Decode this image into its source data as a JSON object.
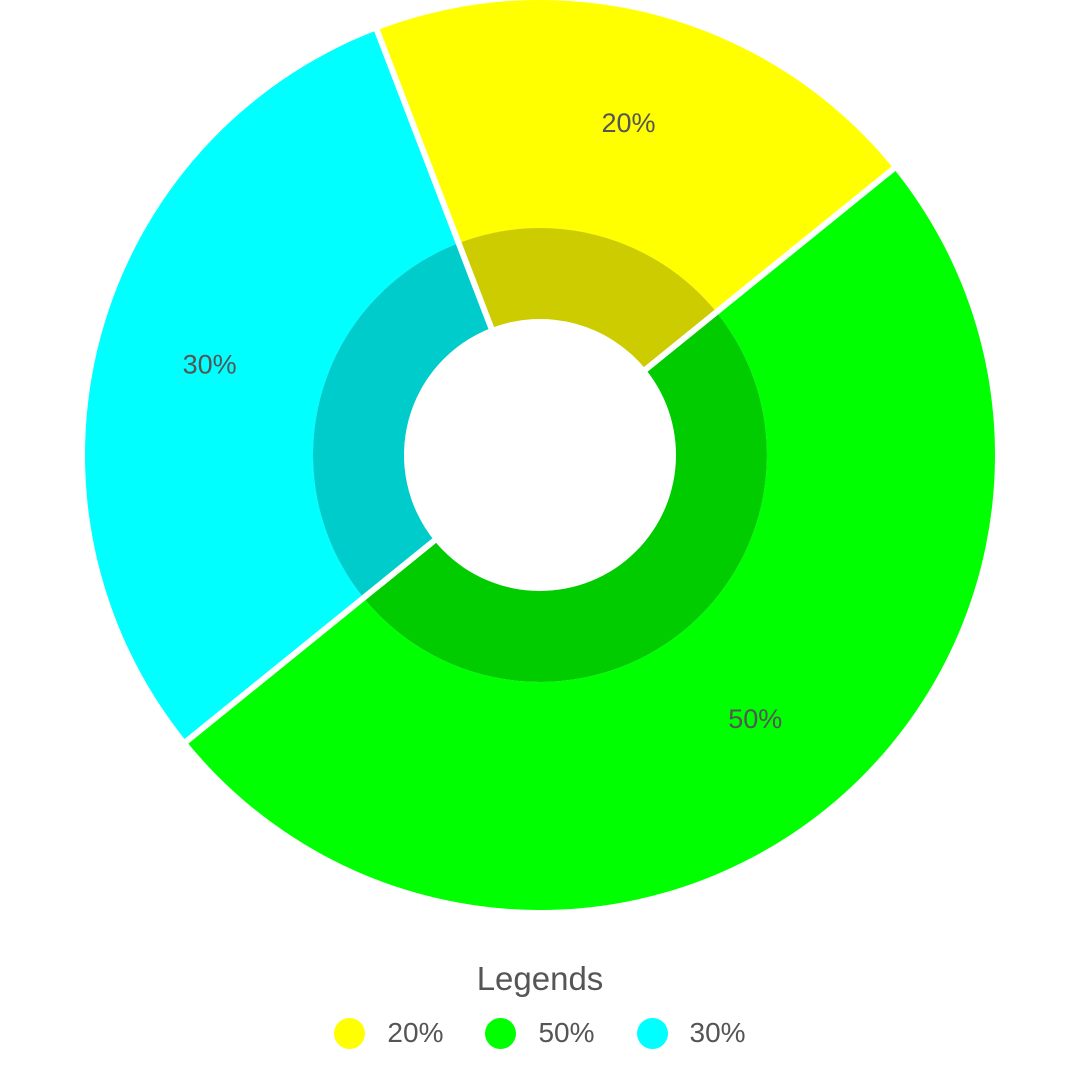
{
  "chart_data": {
    "type": "pie",
    "variant": "donut",
    "title": "",
    "categories": [
      "20%",
      "50%",
      "30%"
    ],
    "values": [
      20,
      50,
      30
    ],
    "slice_labels": [
      "20%",
      "50%",
      "30%"
    ],
    "colors": {
      "outer": [
        "#ffff00",
        "#00ff00",
        "#00ffff"
      ],
      "inner": [
        "#cccc00",
        "#00cc00",
        "#00cccc"
      ]
    },
    "legend": {
      "title": "Legends",
      "placement": "bottom-center",
      "items": [
        {
          "label": "20%",
          "color": "#ffff00"
        },
        {
          "label": "50%",
          "color": "#00ff00"
        },
        {
          "label": "30%",
          "color": "#00ffff"
        }
      ]
    }
  }
}
